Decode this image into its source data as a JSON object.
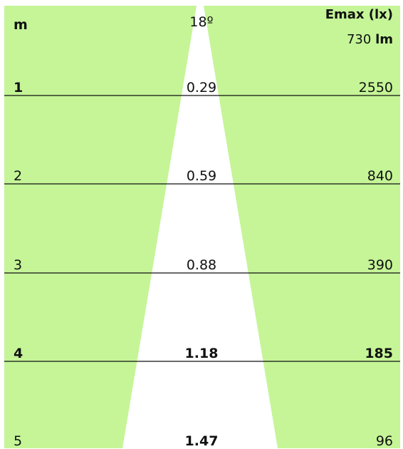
{
  "header": {
    "distance_label": "m",
    "beam_angle": "18º",
    "emax_label": "Emax (lx)",
    "lumen_label_value": "730",
    "lumen_label_unit": "lm"
  },
  "rows": [
    {
      "distance": "1",
      "diameter": "0.29",
      "lux": "2550"
    },
    {
      "distance": "2",
      "diameter": "0.59",
      "lux": "840"
    },
    {
      "distance": "3",
      "diameter": "0.88",
      "lux": "390"
    },
    {
      "distance": "4",
      "diameter": "1.18",
      "lux": "185"
    },
    {
      "distance": "5",
      "diameter": "1.47",
      "lux": "96"
    }
  ],
  "colors": {
    "background": "#c5f597",
    "beam": "#ffffff",
    "lines": "#111111",
    "text": "#111111"
  }
}
